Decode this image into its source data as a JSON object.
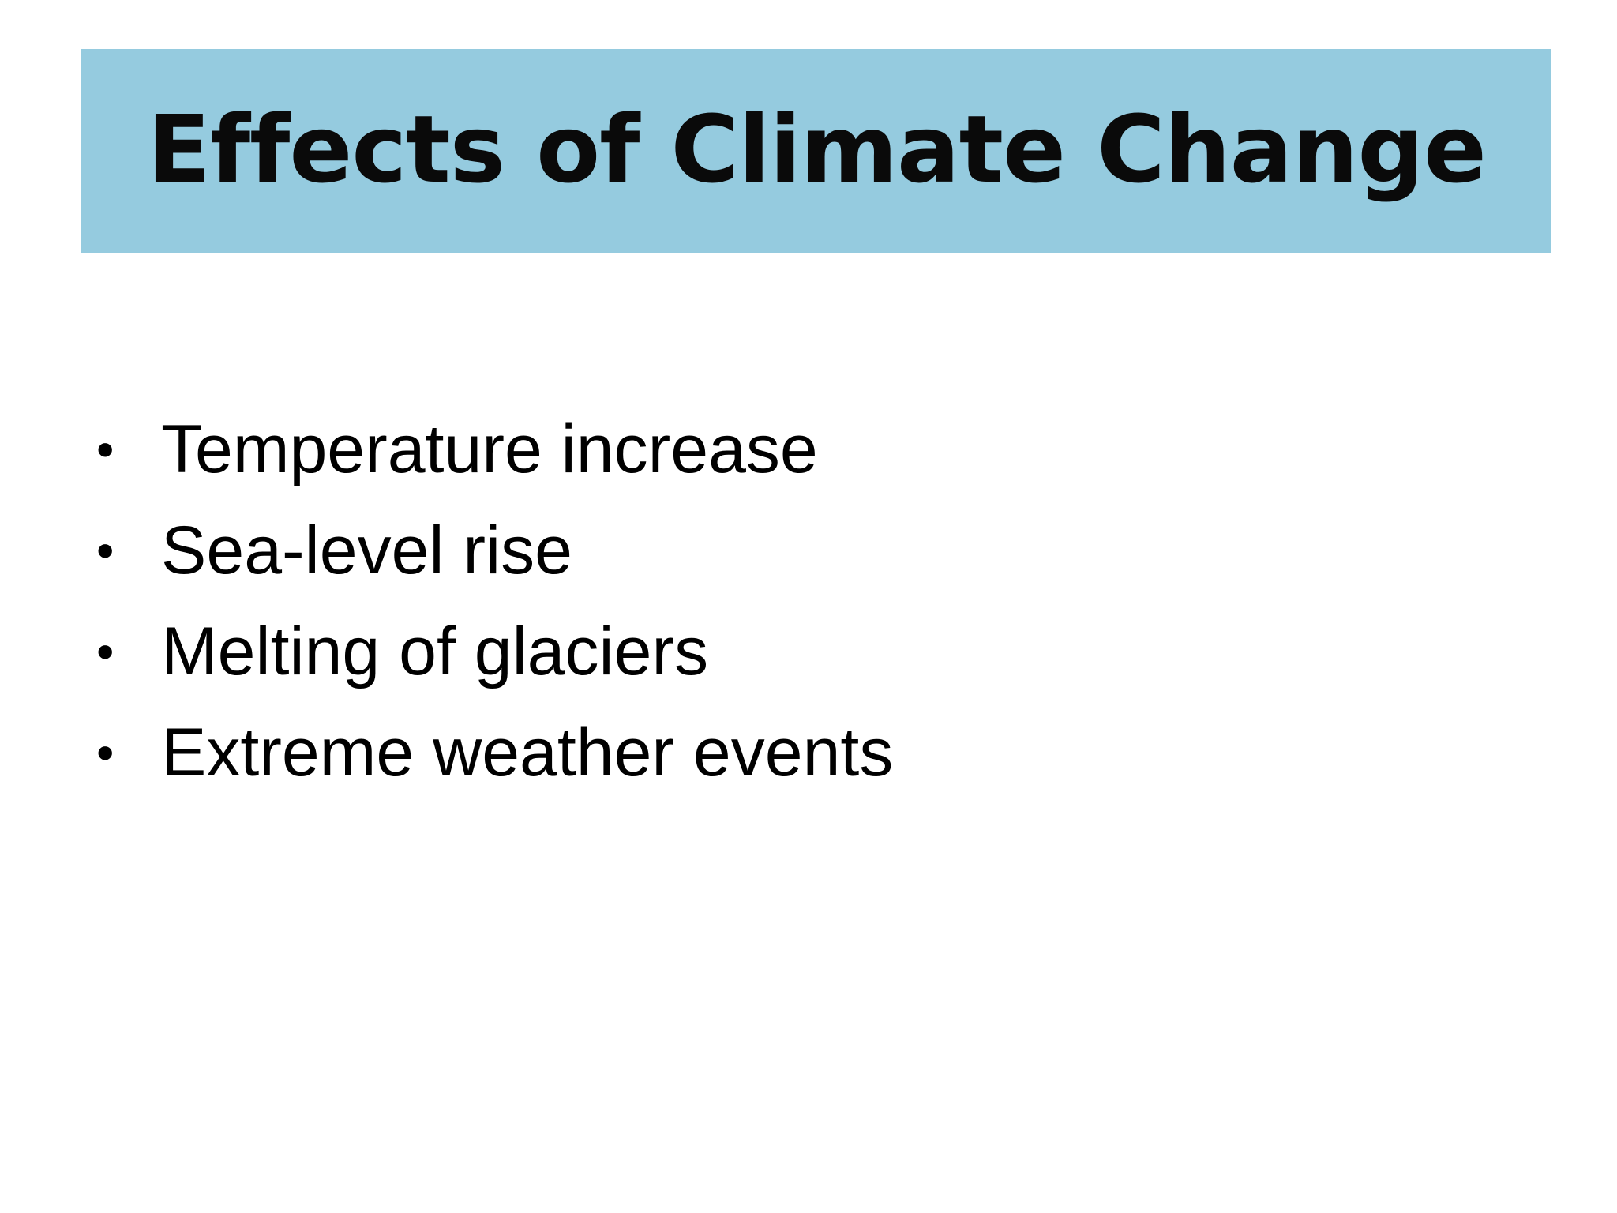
{
  "slide": {
    "title": "Effects of Climate Change",
    "title_bar_color": "#95cbdf",
    "bullet_glyph": "•",
    "bullets": [
      "Temperature increase",
      "Sea-level rise",
      "Melting of glaciers",
      "Extreme weather events"
    ]
  }
}
